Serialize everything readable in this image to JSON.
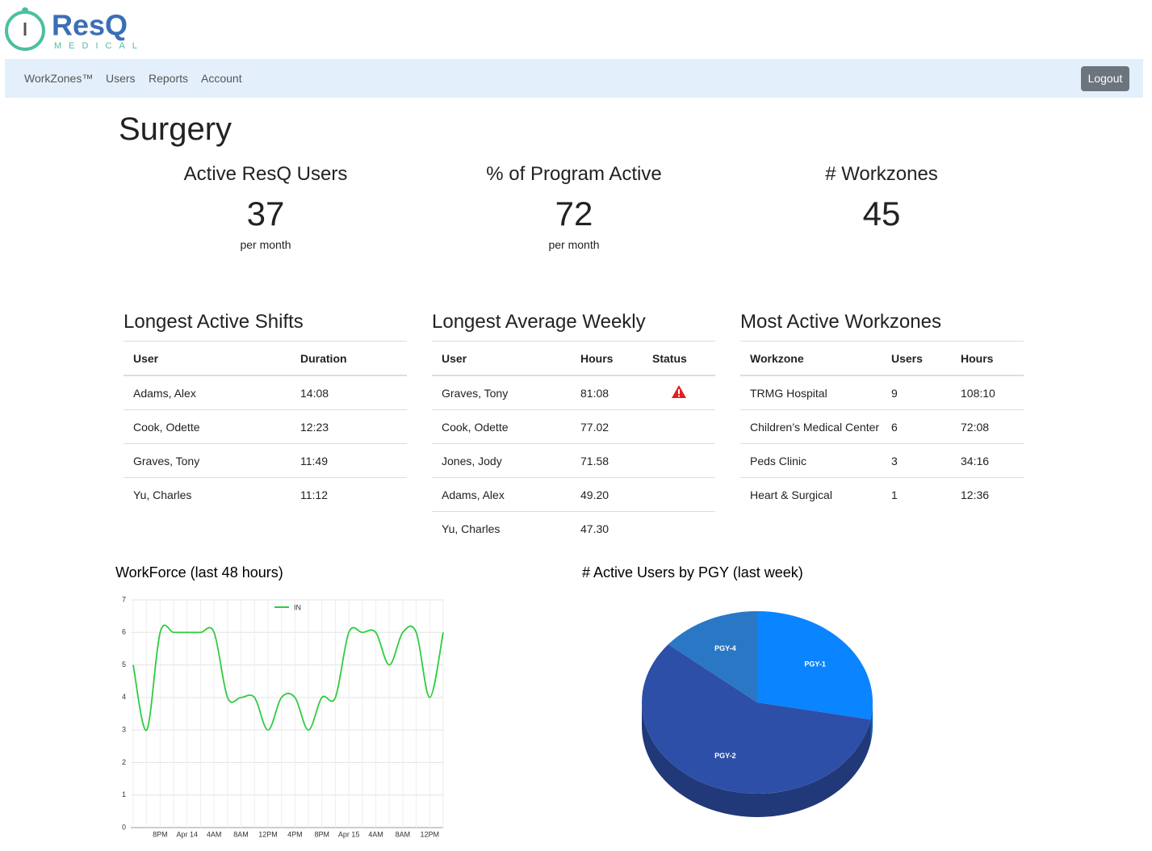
{
  "header": {
    "logo": "ResQ",
    "logo_sub": "MEDICAL"
  },
  "nav": {
    "items": [
      "WorkZones™",
      "Users",
      "Reports",
      "Account"
    ],
    "logout": "Logout"
  },
  "page_title": "Surgery",
  "stats": [
    {
      "title": "Active ResQ Users",
      "value": 37,
      "unit": "per month"
    },
    {
      "title": "% of Program Active",
      "value": 72,
      "unit": "per month"
    },
    {
      "title": "# Workzones",
      "value": 45
    }
  ],
  "tables": [
    {
      "title": "Longest Active Shifts",
      "columns": [
        "User",
        "Duration"
      ],
      "rows": [
        [
          "Adams, Alex",
          "14:08"
        ],
        [
          "Cook, Odette",
          "12:23"
        ],
        [
          "Graves, Tony",
          "11:49"
        ],
        [
          "Yu, Charles",
          "11:12"
        ]
      ]
    },
    {
      "title": "Longest Average Weekly",
      "columns": [
        "User",
        "Hours",
        "Status"
      ],
      "rows": [
        [
          "Graves, Tony",
          "81:08"
        ],
        [
          "Cook, Odette",
          "77.02"
        ],
        [
          "Jones, Jody",
          "71.58"
        ],
        [
          "Adams, Alex",
          "49.20"
        ],
        [
          "Yu, Charles",
          "47.30"
        ]
      ]
    },
    {
      "title": "Most Active Workzones",
      "columns": [
        "Workzone",
        "Users",
        "Hours"
      ],
      "rows": [
        [
          "TRMG Hospital",
          "9",
          "108:10"
        ],
        [
          "Children’s Medical Center",
          "6",
          "72:08"
        ],
        [
          "Peds Clinic",
          "3",
          "34:16"
        ],
        [
          "Heart & Surgical",
          "1",
          "12:36"
        ]
      ]
    }
  ],
  "chart_data": [
    {
      "type": "line",
      "title": "WorkForce (last 48 hours)",
      "categories": [
        null,
        null,
        "8PM",
        null,
        "Apr 14",
        null,
        "4AM",
        null,
        "8AM",
        null,
        "12PM",
        null,
        "4PM",
        null,
        "8PM",
        null,
        "Apr 15",
        null,
        "4AM",
        null,
        "8AM",
        null,
        "12PM",
        null
      ],
      "series": [
        {
          "name": "IN",
          "color": "#2ecc40",
          "values": [
            5,
            3,
            6,
            6,
            6,
            6,
            6,
            4,
            4,
            4,
            3,
            4,
            4,
            3,
            4,
            4,
            6,
            6,
            6,
            5,
            6,
            6,
            4,
            6
          ]
        }
      ],
      "ylim": [
        0,
        7
      ],
      "yticks": [
        0,
        1,
        2,
        3,
        4,
        5,
        6,
        7
      ],
      "grid": true,
      "legend": "top"
    },
    {
      "type": "pie",
      "title": "# Active Users by PGY (last week)",
      "categories": [
        "PGY-1",
        "PGY-2",
        "PGY-4"
      ],
      "values": [
        28,
        58,
        14
      ],
      "colors": [
        "#0a84ff",
        "#2e4fa8",
        "#2a78c5"
      ],
      "three_d": true
    }
  ]
}
